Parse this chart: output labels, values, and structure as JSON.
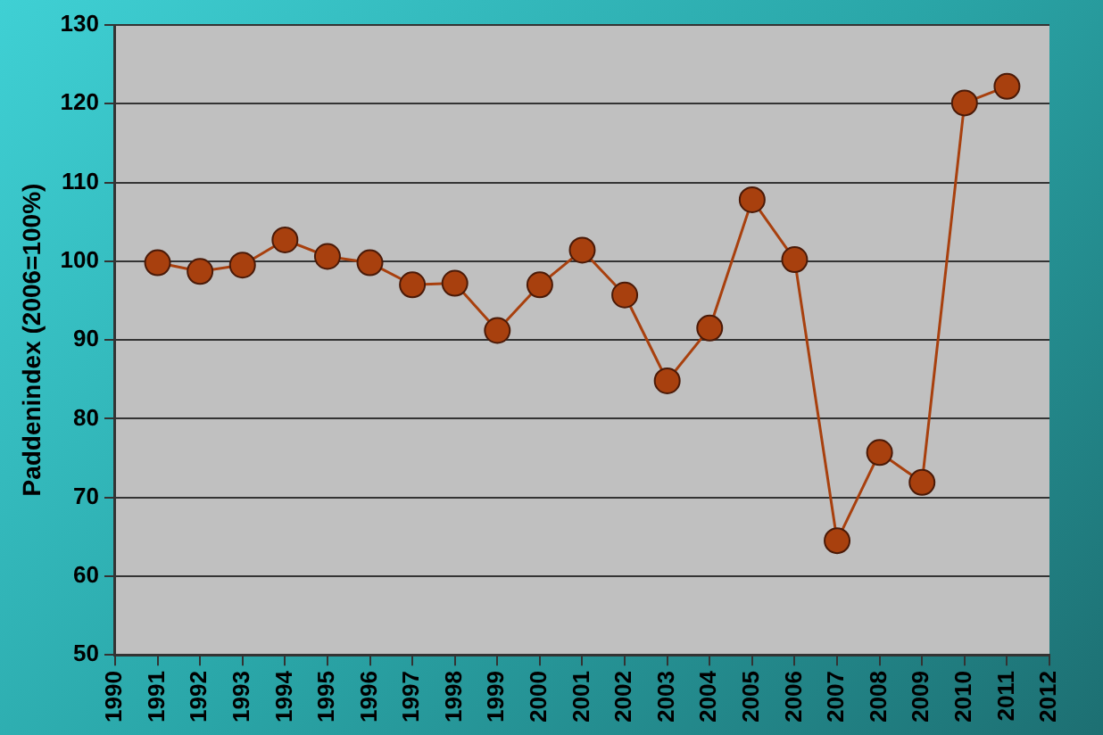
{
  "chart_data": {
    "type": "line",
    "ylabel": "Paddenindex (2006=100%)",
    "x": [
      1991,
      1992,
      1993,
      1994,
      1995,
      1996,
      1997,
      1998,
      1999,
      2000,
      2001,
      2002,
      2003,
      2004,
      2005,
      2006,
      2007,
      2008,
      2009,
      2010,
      2011
    ],
    "series": [
      {
        "color": "#a8400e",
        "values": [
          99.8,
          98.7,
          99.5,
          102.7,
          100.6,
          99.8,
          97,
          97.2,
          91.2,
          97,
          101.4,
          95.7,
          84.8,
          91.5,
          107.8,
          100.2,
          64.5,
          75.7,
          71.9,
          120.1,
          122.2
        ]
      }
    ],
    "xlim": [
      1990,
      2012
    ],
    "xticks": [
      1990,
      1991,
      1992,
      1993,
      1994,
      1995,
      1996,
      1997,
      1998,
      1999,
      2000,
      2001,
      2002,
      2003,
      2004,
      2005,
      2006,
      2007,
      2008,
      2009,
      2010,
      2011,
      2012
    ],
    "ylim": [
      50,
      130
    ],
    "yticks": [
      50,
      60,
      70,
      80,
      90,
      100,
      110,
      120,
      130
    ],
    "grid": "y",
    "marker": "circle",
    "line_style": "solid",
    "legend": false
  }
}
